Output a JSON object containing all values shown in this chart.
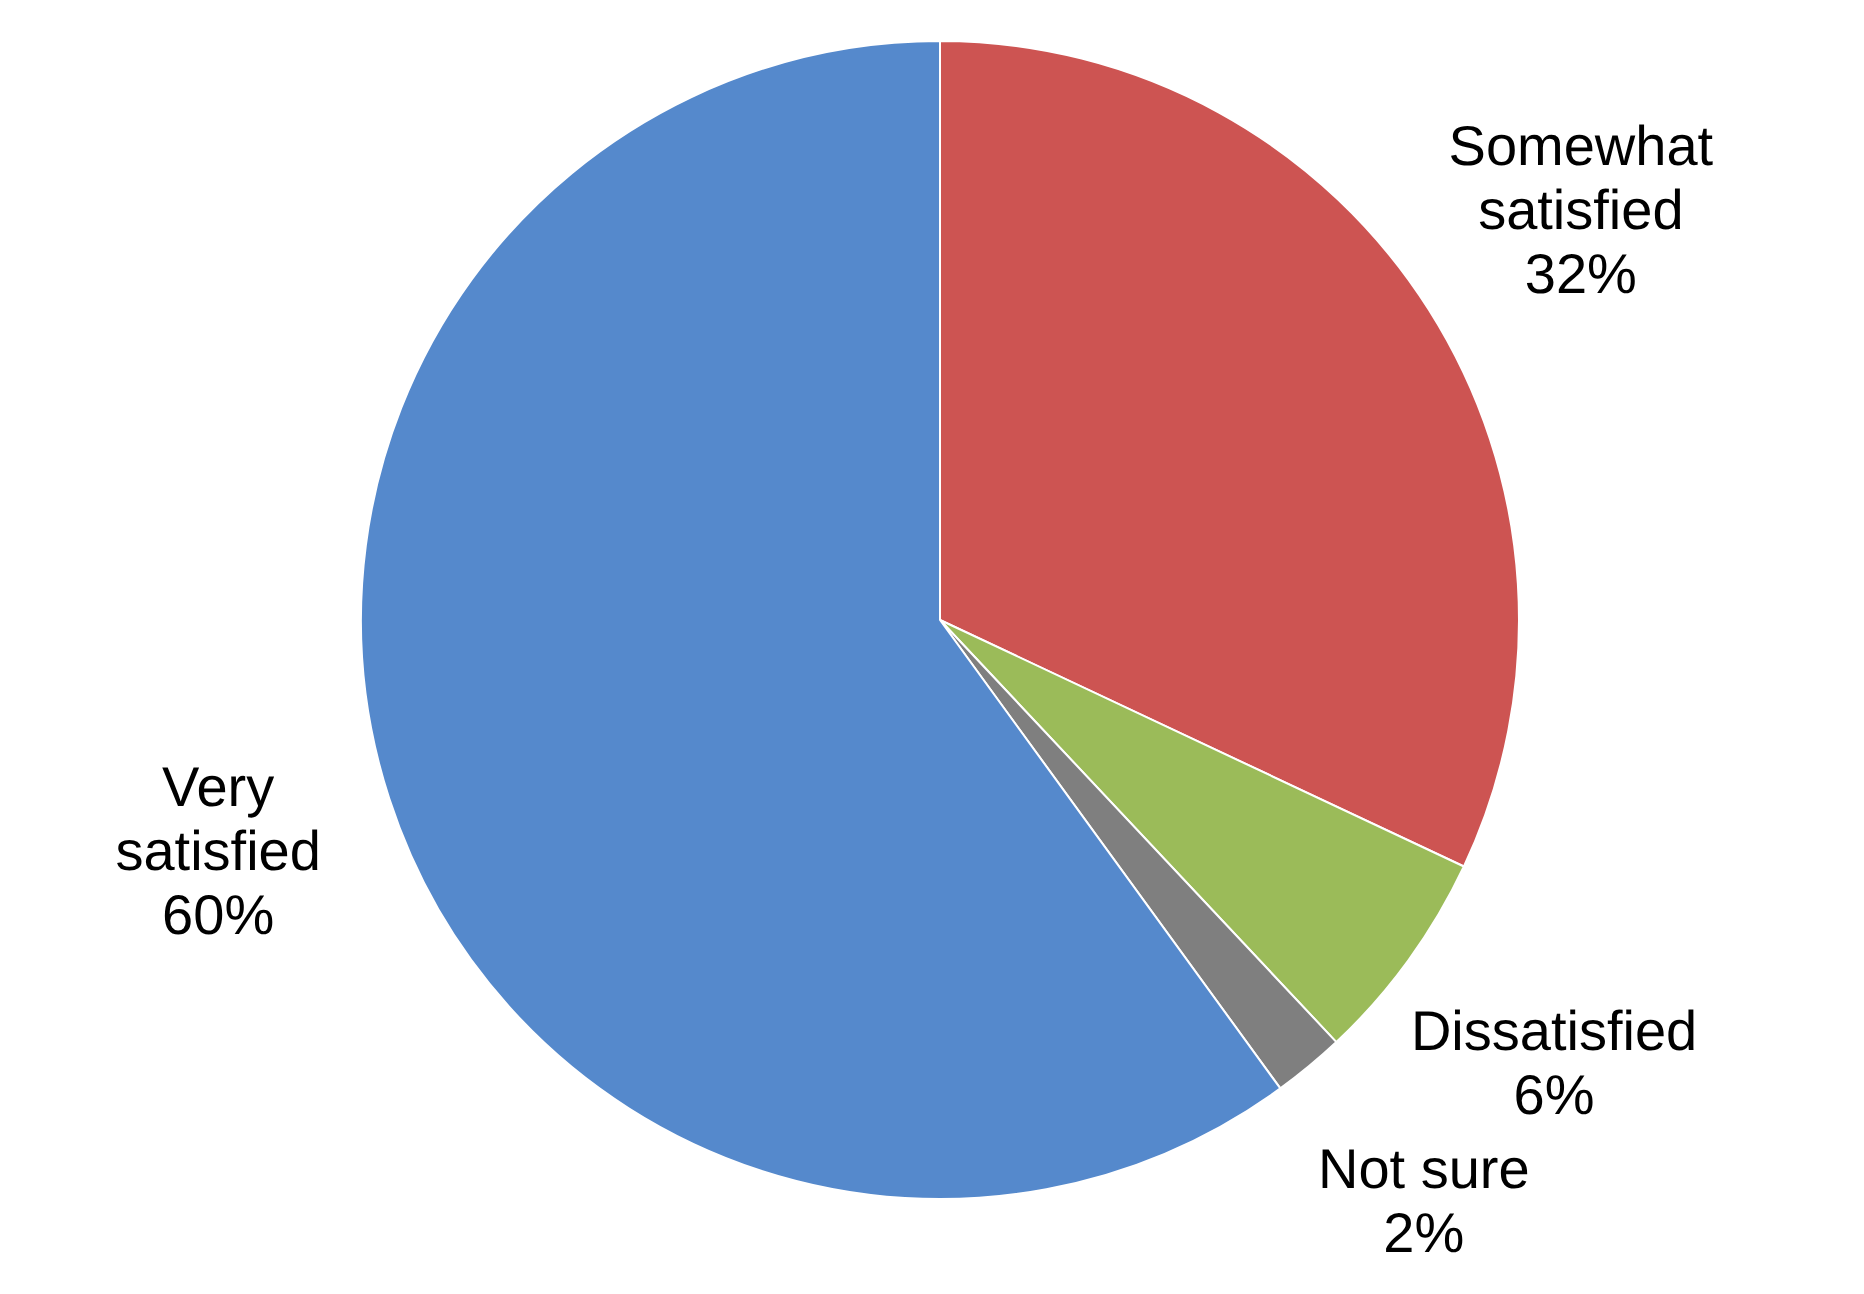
{
  "chart_data": {
    "type": "pie",
    "categories": [
      "Somewhat satisfied",
      "Dissatisfied",
      "Not sure",
      "Very satisfied"
    ],
    "values": [
      32,
      6,
      2,
      60
    ],
    "value_labels": [
      "32%",
      "6%",
      "2%",
      "60%"
    ],
    "colors": [
      "#cd5452",
      "#9bbb59",
      "#7f7f7f",
      "#5589cc"
    ],
    "legend": false
  }
}
